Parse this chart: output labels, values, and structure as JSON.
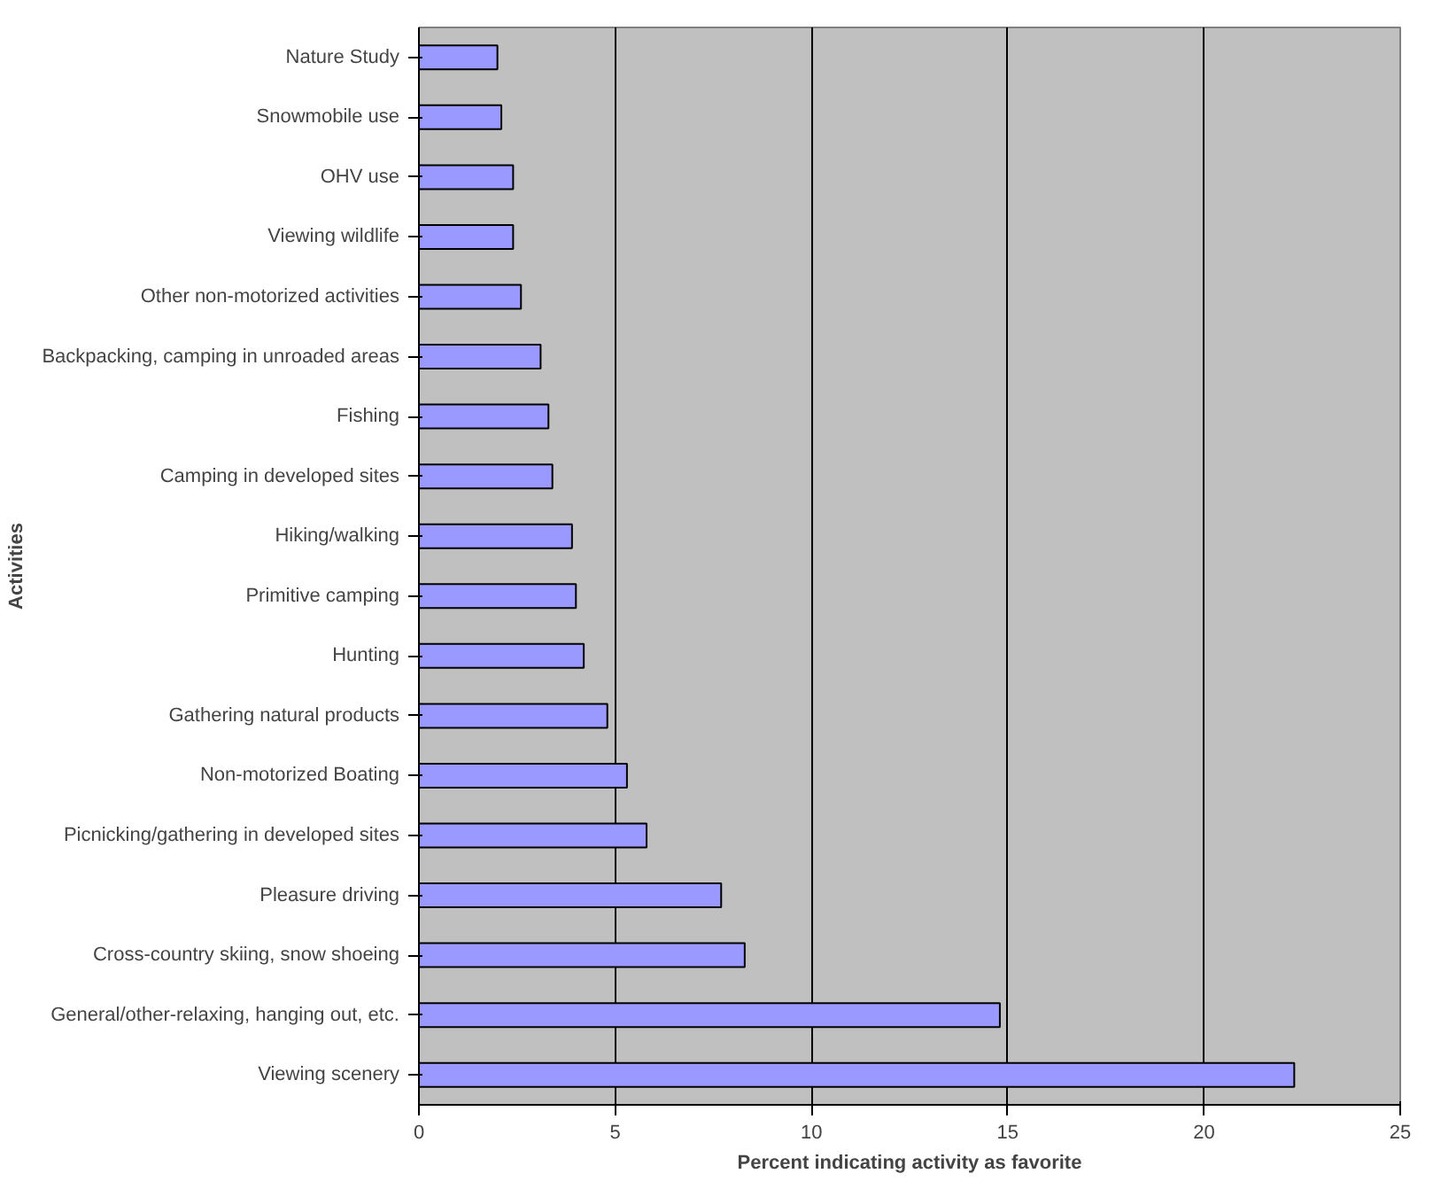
{
  "chart_data": {
    "type": "bar",
    "orientation": "horizontal",
    "xlabel": "Percent indicating activity as favorite",
    "ylabel": "Activities",
    "categories": [
      "Nature Study",
      "Snowmobile use",
      "OHV use",
      "Viewing wildlife",
      "Other non-motorized activities",
      "Backpacking, camping in unroaded areas",
      "Fishing",
      "Camping in developed sites",
      "Hiking/walking",
      "Primitive camping",
      "Hunting",
      "Gathering natural products",
      "Non-motorized Boating",
      "Picnicking/gathering in developed sites",
      "Pleasure driving",
      "Cross-country skiing, snow shoeing",
      "General/other-relaxing, hanging out, etc.",
      "Viewing scenery"
    ],
    "values": [
      2.0,
      2.1,
      2.4,
      2.4,
      2.6,
      3.1,
      3.3,
      3.4,
      3.9,
      4.0,
      4.2,
      4.8,
      5.3,
      5.8,
      7.7,
      8.3,
      14.8,
      22.3
    ],
    "color": "#9999ff",
    "xlim": [
      0,
      25
    ],
    "xticks": [
      0,
      5,
      10,
      15,
      20,
      25
    ],
    "grid": "x"
  }
}
